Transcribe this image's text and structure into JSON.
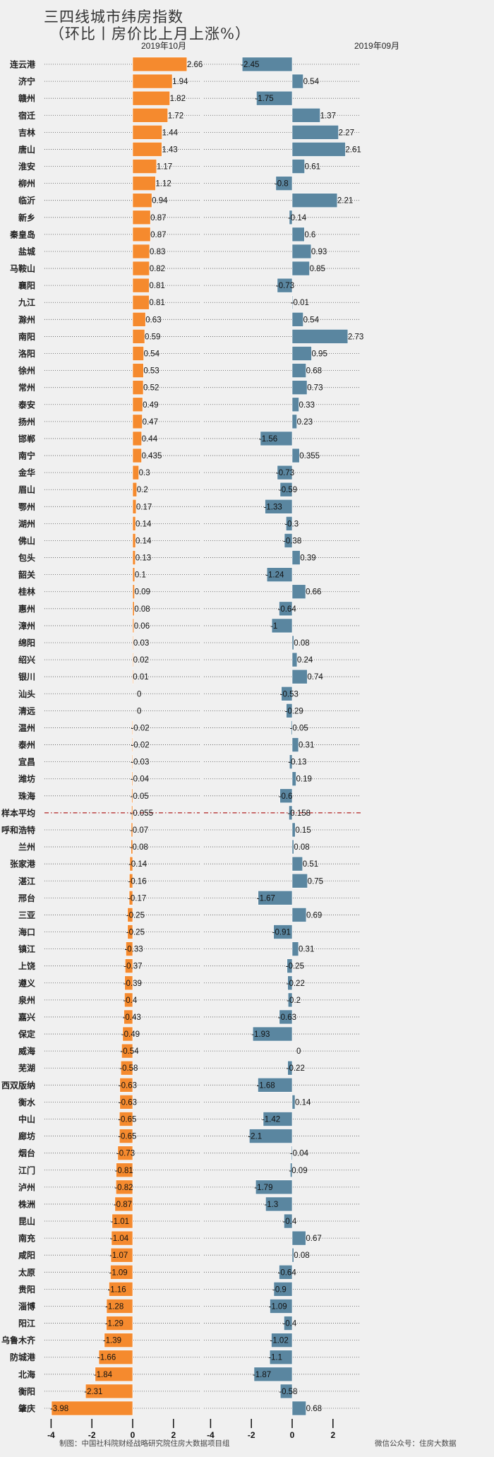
{
  "title_line1": "三四线城市纬房指数",
  "title_line2": "（环比丨房价比上月上涨%）",
  "footer_left": "制图：中国社科院财经战略研究院住房大数据项目组",
  "footer_right": "微信公众号：住房大数据",
  "colors": {
    "oct": "#f58a2e",
    "sep": "#5a86a0",
    "avg_line": "#b22222",
    "background": "#f0f0f0"
  },
  "chart_data": {
    "type": "bar",
    "orientation": "horizontal",
    "title": "三四线城市纬房指数（环比丨房价比上月上涨%）",
    "panels": [
      {
        "name": "2019年10月",
        "xlim": [
          -4,
          2.8
        ],
        "ticks": [
          -4,
          -2,
          0,
          2
        ]
      },
      {
        "name": "2019年09月",
        "xlim": [
          -4,
          2.8
        ],
        "ticks": [
          -4,
          -2,
          0,
          2
        ]
      }
    ],
    "average_category": "样本平均",
    "categories": [
      "连云港",
      "济宁",
      "赣州",
      "宿迁",
      "吉林",
      "唐山",
      "淮安",
      "柳州",
      "临沂",
      "新乡",
      "秦皇岛",
      "盐城",
      "马鞍山",
      "襄阳",
      "九江",
      "滁州",
      "南阳",
      "洛阳",
      "徐州",
      "常州",
      "泰安",
      "扬州",
      "邯郸",
      "南宁",
      "金华",
      "眉山",
      "鄂州",
      "湖州",
      "佛山",
      "包头",
      "韶关",
      "桂林",
      "惠州",
      "漳州",
      "绵阳",
      "绍兴",
      "银川",
      "汕头",
      "清远",
      "温州",
      "泰州",
      "宜昌",
      "潍坊",
      "珠海",
      "样本平均",
      "呼和浩特",
      "兰州",
      "张家港",
      "湛江",
      "邢台",
      "三亚",
      "海口",
      "镇江",
      "上饶",
      "遵义",
      "泉州",
      "嘉兴",
      "保定",
      "威海",
      "芜湖",
      "西双版纳",
      "衡水",
      "中山",
      "廊坊",
      "烟台",
      "江门",
      "泸州",
      "株洲",
      "昆山",
      "南充",
      "咸阳",
      "太原",
      "贵阳",
      "淄博",
      "阳江",
      "乌鲁木齐",
      "防城港",
      "北海",
      "衡阳",
      "肇庆"
    ],
    "series": [
      {
        "name": "2019年10月",
        "values": [
          2.66,
          1.94,
          1.82,
          1.72,
          1.44,
          1.43,
          1.17,
          1.12,
          0.94,
          0.87,
          0.87,
          0.83,
          0.82,
          0.81,
          0.81,
          0.63,
          0.59,
          0.54,
          0.53,
          0.52,
          0.49,
          0.47,
          0.44,
          0.435,
          0.3,
          0.2,
          0.17,
          0.14,
          0.14,
          0.13,
          0.1,
          0.09,
          0.08,
          0.06,
          0.03,
          0.02,
          0.01,
          0,
          0,
          -0.02,
          -0.02,
          -0.03,
          -0.04,
          -0.05,
          -0.055,
          -0.07,
          -0.08,
          -0.14,
          -0.16,
          -0.17,
          -0.25,
          -0.25,
          -0.33,
          -0.37,
          -0.39,
          -0.4,
          -0.43,
          -0.49,
          -0.54,
          -0.58,
          -0.63,
          -0.63,
          -0.65,
          -0.65,
          -0.73,
          -0.81,
          -0.82,
          -0.87,
          -1.01,
          -1.04,
          -1.07,
          -1.09,
          -1.16,
          -1.28,
          -1.29,
          -1.39,
          -1.66,
          -1.84,
          -2.31,
          -3.98
        ]
      },
      {
        "name": "2019年09月",
        "values": [
          -2.45,
          0.54,
          -1.75,
          1.37,
          2.27,
          2.61,
          0.61,
          -0.8,
          2.21,
          -0.14,
          0.6,
          0.93,
          0.85,
          -0.73,
          -0.01,
          0.54,
          2.73,
          0.95,
          0.68,
          0.73,
          0.33,
          0.23,
          -1.56,
          0.355,
          -0.73,
          -0.59,
          -1.33,
          -0.3,
          -0.38,
          0.39,
          -1.24,
          0.66,
          -0.64,
          -1,
          0.08,
          0.24,
          0.74,
          -0.53,
          -0.29,
          -0.05,
          0.31,
          -0.13,
          0.19,
          -0.6,
          -0.158,
          0.15,
          0.08,
          0.51,
          0.75,
          -1.67,
          0.69,
          -0.91,
          0.31,
          -0.25,
          -0.22,
          -0.2,
          -0.63,
          -1.93,
          0,
          -0.22,
          -1.68,
          0.14,
          -1.42,
          -2.1,
          -0.04,
          -0.09,
          -1.79,
          -1.3,
          -0.4,
          0.67,
          0.08,
          -0.64,
          -0.9,
          -1.09,
          -0.4,
          -1.02,
          -1.1,
          -1.87,
          -0.58,
          0.68
        ]
      }
    ]
  }
}
